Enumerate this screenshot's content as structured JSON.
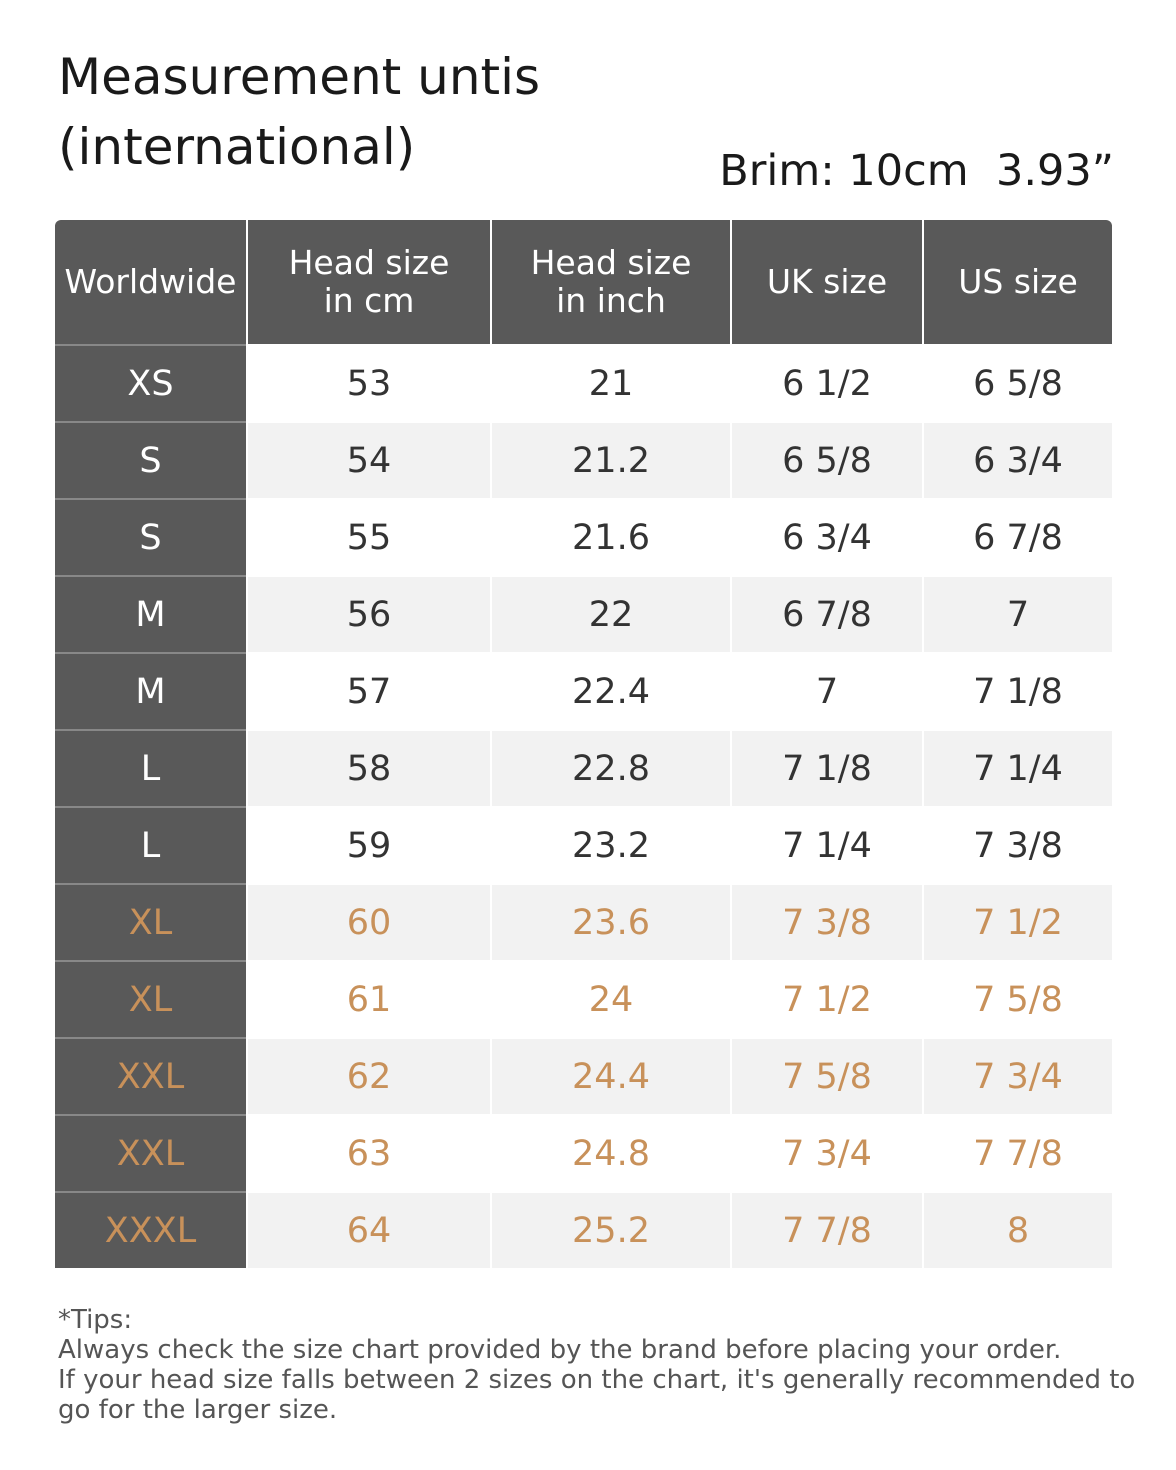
{
  "header": {
    "title": [
      "Measurement untis",
      "(international)"
    ],
    "brim": "Brim: 10cm  3.93”"
  },
  "table": {
    "columns": [
      [
        "Worldwide"
      ],
      [
        "Head size",
        "in cm"
      ],
      [
        "Head size",
        "in inch"
      ],
      [
        "UK size"
      ],
      [
        "US size"
      ]
    ],
    "rows": [
      [
        "XS",
        "53",
        "21",
        "6 1/2",
        "6 5/8"
      ],
      [
        "S",
        "54",
        "21.2",
        "6 5/8",
        "6 3/4"
      ],
      [
        "S",
        "55",
        "21.6",
        "6 3/4",
        "6 7/8"
      ],
      [
        "M",
        "56",
        "22",
        "6 7/8",
        "7"
      ],
      [
        "M",
        "57",
        "22.4",
        "7",
        "7 1/8"
      ],
      [
        "L",
        "58",
        "22.8",
        "7 1/8",
        "7 1/4"
      ],
      [
        "L",
        "59",
        "23.2",
        "7 1/4",
        "7 3/8"
      ],
      [
        "XL",
        "60",
        "23.6",
        "7 3/8",
        "7 1/2"
      ],
      [
        "XL",
        "61",
        "24",
        "7 1/2",
        "7 5/8"
      ],
      [
        "XXL",
        "62",
        "24.4",
        "7 5/8",
        "7 3/4"
      ],
      [
        "XXL",
        "63",
        "24.8",
        "7 3/4",
        "7 7/8"
      ],
      [
        "XXXL",
        "64",
        "25.2",
        "7 7/8",
        "8"
      ]
    ],
    "highlight": {
      "color": "#c8915a",
      "rows": [
        7,
        8,
        9,
        10,
        11
      ]
    }
  },
  "tips": {
    "heading": "*Tips:",
    "lines": [
      "Always check the size chart provided by the brand before placing your order.",
      "If your head size falls between 2 sizes on the chart, it's generally recommended to",
      "go for the larger size."
    ]
  }
}
